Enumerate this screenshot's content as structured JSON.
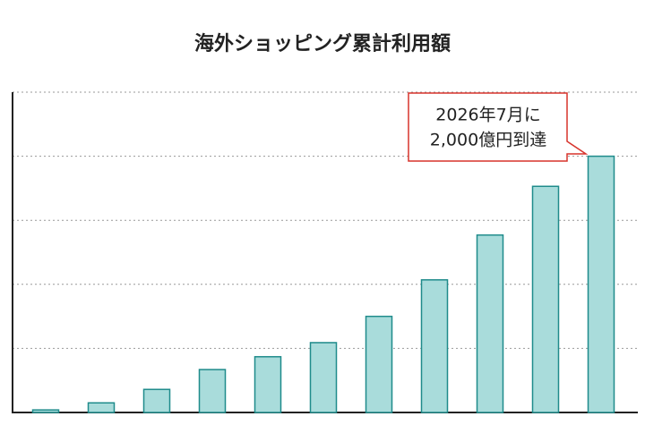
{
  "chart_data": {
    "type": "bar",
    "title": "海外ショッピング累計利用額",
    "categories": [
      null,
      null,
      null,
      null,
      null,
      null,
      null,
      null,
      null,
      null,
      null
    ],
    "values": [
      20,
      75,
      180,
      335,
      435,
      545,
      750,
      1035,
      1385,
      1765,
      2000
    ],
    "color": "#a9dcdb",
    "edge_color": "#1f8b8b",
    "ylim": [
      0,
      2500
    ],
    "yticks": [
      0,
      500,
      1000,
      1500,
      2000,
      2500
    ],
    "grid": true,
    "annotation": {
      "lines": [
        "2026年7月に",
        "2,000億円到達"
      ],
      "color": "#d7342c"
    }
  }
}
